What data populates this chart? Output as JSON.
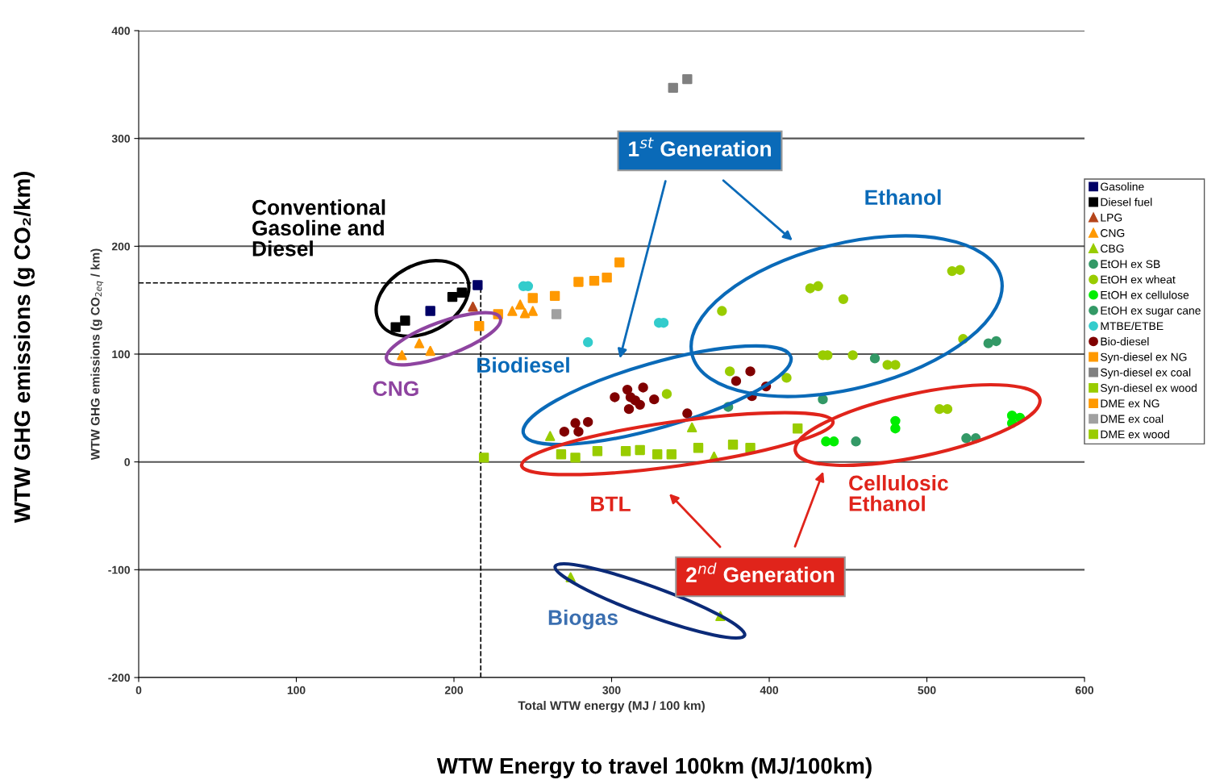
{
  "chart_data": {
    "type": "scatter",
    "xlabel": "Total WTW energy (MJ / 100 km)",
    "ylabel": "WTW GHG emissions (g CO$_{2eq}$ / km)",
    "xlim": [
      0,
      600
    ],
    "ylim": [
      -200,
      400
    ],
    "xticks": [
      0,
      100,
      200,
      300,
      400,
      500,
      600
    ],
    "yticks": [
      -200,
      -100,
      0,
      100,
      200,
      300,
      400
    ],
    "grid": "y",
    "legend": "right",
    "ref_lines": [
      {
        "axis": "x",
        "value": 217,
        "line_style": "dashed",
        "color": "#000000"
      },
      {
        "axis": "y",
        "value": 166,
        "line_style": "dashed",
        "color": "#000000"
      }
    ],
    "annotations": [
      "WTW Energy to travel 100km (MJ/100km)",
      "WTW GHG emissions (g CO₂/km)",
      "Conventional\nGasoline and\nDiesel",
      "CNG",
      "Biodiesel",
      "1$^{st}$ Generation",
      "Ethanol",
      "BTL",
      "Cellulosic\nEthanol",
      "2$^{nd}$ Generation",
      "Biogas"
    ],
    "series": [
      {
        "name": "Gasoline",
        "color": "#000066",
        "marker": "square",
        "x": [
          185,
          215
        ],
        "values": [
          140,
          164
        ]
      },
      {
        "name": "Diesel fuel",
        "color": "#000000",
        "marker": "square",
        "x": [
          163,
          169,
          199,
          205
        ],
        "values": [
          125,
          131,
          153,
          157
        ]
      },
      {
        "name": "LPG",
        "color": "#b5451b",
        "marker": "triangle",
        "x": [
          212
        ],
        "values": [
          144
        ]
      },
      {
        "name": "CNG",
        "color": "#ff9900",
        "marker": "triangle",
        "x": [
          167,
          178,
          185,
          237,
          242,
          245,
          250
        ],
        "values": [
          99,
          110,
          103,
          140,
          146,
          138,
          140
        ]
      },
      {
        "name": "CBG",
        "color": "#99cc00",
        "marker": "triangle",
        "x": [
          274,
          369,
          351,
          261,
          365
        ],
        "values": [
          -107,
          -143,
          32,
          24,
          5
        ]
      },
      {
        "name": "EtOH ex SB",
        "color": "#339966",
        "marker": "circle",
        "x": [
          467,
          539,
          544,
          434,
          374
        ],
        "values": [
          96,
          110,
          112,
          58,
          51
        ]
      },
      {
        "name": "EtOH ex wheat",
        "color": "#99cc00",
        "marker": "circle",
        "x": [
          426,
          431,
          447,
          370,
          516,
          521,
          434,
          437,
          453,
          475,
          480,
          523,
          335,
          375,
          411,
          508,
          513
        ],
        "values": [
          161,
          163,
          151,
          140,
          177,
          178,
          99,
          99,
          99,
          90,
          90,
          114,
          63,
          84,
          78,
          49,
          49
        ]
      },
      {
        "name": "EtOH ex cellulose",
        "color": "#00ee00",
        "marker": "circle",
        "x": [
          436,
          441,
          480,
          480,
          554,
          559,
          554
        ],
        "values": [
          19,
          19,
          38,
          31,
          43,
          41,
          36
        ]
      },
      {
        "name": "EtOH ex sugar cane",
        "color": "#339966",
        "marker": "circle",
        "x": [
          455,
          525,
          531
        ],
        "values": [
          19,
          22,
          22
        ]
      },
      {
        "name": "MTBE/ETBE",
        "color": "#33cccc",
        "marker": "circle",
        "x": [
          244,
          247,
          285,
          330,
          333
        ],
        "values": [
          163,
          163,
          111,
          129,
          129
        ]
      },
      {
        "name": "Bio-diesel",
        "color": "#800000",
        "marker": "circle",
        "x": [
          302,
          310,
          312,
          320,
          315,
          327,
          318,
          311,
          277,
          285,
          270,
          279,
          348,
          388,
          379,
          398,
          389
        ],
        "values": [
          60,
          67,
          60,
          69,
          57,
          58,
          53,
          49,
          36,
          37,
          28,
          28,
          45,
          84,
          75,
          70,
          61
        ]
      },
      {
        "name": "Syn-diesel ex NG",
        "color": "#ff9900",
        "marker": "square",
        "x": [
          289,
          297
        ],
        "values": [
          168,
          171
        ]
      },
      {
        "name": "Syn-diesel ex coal",
        "color": "#808080",
        "marker": "square",
        "x": [
          339,
          348
        ],
        "values": [
          347,
          355
        ]
      },
      {
        "name": "Syn-diesel ex wood",
        "color": "#99cc00",
        "marker": "square",
        "x": [
          277,
          309,
          318,
          329,
          338,
          377,
          388,
          418
        ],
        "values": [
          4,
          10,
          11,
          7,
          7,
          16,
          13,
          31
        ]
      },
      {
        "name": "DME ex NG",
        "color": "#ff9900",
        "marker": "square",
        "x": [
          305,
          279,
          264,
          250,
          228,
          216
        ],
        "values": [
          185,
          167,
          154,
          152,
          137,
          126
        ]
      },
      {
        "name": "DME ex coal",
        "color": "#a0a0a0",
        "marker": "square",
        "x": [
          265
        ],
        "values": [
          137
        ]
      },
      {
        "name": "DME ex wood",
        "color": "#99cc00",
        "marker": "square",
        "x": [
          219,
          268,
          291,
          355
        ],
        "values": [
          4,
          7,
          10,
          13
        ]
      }
    ]
  }
}
